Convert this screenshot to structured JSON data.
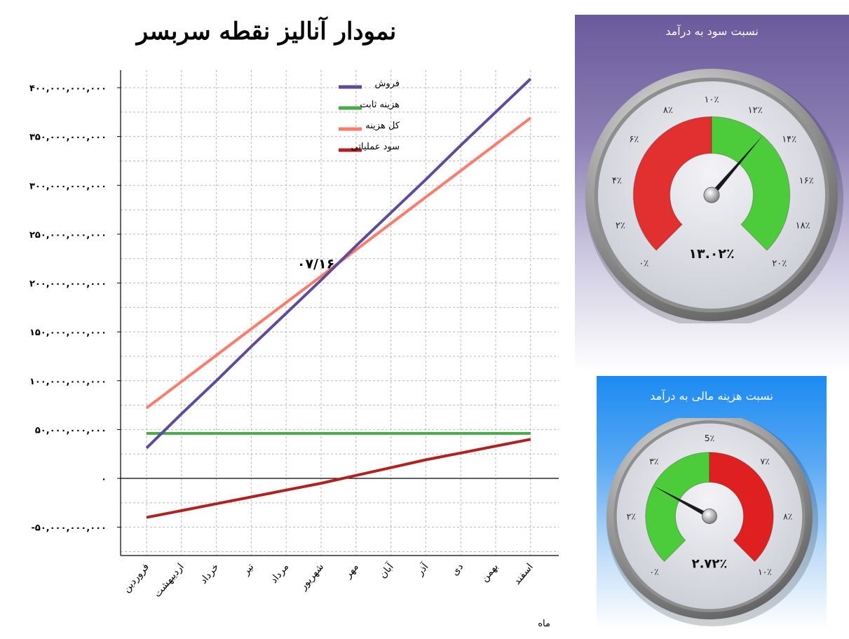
{
  "chart_data": {
    "type": "line",
    "title": "نمودار آنالیز نقطه سربسر",
    "xlabel": "ماه",
    "categories": [
      "فروردین",
      "اردیبهشت",
      "خرداد",
      "تیر",
      "مرداد",
      "شهریور",
      "مهر",
      "آبان",
      "آذر",
      "دی",
      "بهمن",
      "اسفند"
    ],
    "y_ticks": [
      {
        "value": 400000000000,
        "label": "۴۰۰,۰۰۰,۰۰۰,۰۰۰"
      },
      {
        "value": 350000000000,
        "label": "۳۵۰,۰۰۰,۰۰۰,۰۰۰"
      },
      {
        "value": 300000000000,
        "label": "۳۰۰,۰۰۰,۰۰۰,۰۰۰"
      },
      {
        "value": 250000000000,
        "label": "۲۵۰,۰۰۰,۰۰۰,۰۰۰"
      },
      {
        "value": 200000000000,
        "label": "۲۰۰,۰۰۰,۰۰۰,۰۰۰"
      },
      {
        "value": 150000000000,
        "label": "۱۵۰,۰۰۰,۰۰۰,۰۰۰"
      },
      {
        "value": 100000000000,
        "label": "۱۰۰,۰۰۰,۰۰۰,۰۰۰"
      },
      {
        "value": 50000000000,
        "label": "۵۰,۰۰۰,۰۰۰,۰۰۰"
      },
      {
        "value": 0,
        "label": "۰"
      },
      {
        "value": -50000000000,
        "label": "-۵۰,۰۰۰,۰۰۰,۰۰۰"
      }
    ],
    "ylim": [
      -80000000000,
      415000000000
    ],
    "grid": true,
    "legend_position": "top-center",
    "series": [
      {
        "name": "فروش",
        "color": "#5e4b9c",
        "values": [
          31000000000,
          66000000000,
          100000000000,
          135000000000,
          169000000000,
          203000000000,
          238000000000,
          272000000000,
          306000000000,
          341000000000,
          375000000000,
          409000000000
        ]
      },
      {
        "name": "هزینه ثابت",
        "color": "#4aa94a",
        "values": [
          46000000000,
          46000000000,
          46000000000,
          46000000000,
          46000000000,
          46000000000,
          46000000000,
          46000000000,
          46000000000,
          46000000000,
          46000000000,
          46000000000
        ]
      },
      {
        "name": "کل هزینه",
        "color": "#ff7b6b",
        "values": [
          72000000000,
          99000000000,
          126000000000,
          153000000000,
          180000000000,
          207000000000,
          234000000000,
          261000000000,
          288000000000,
          315000000000,
          342000000000,
          369000000000
        ]
      },
      {
        "name": "سود عملیاتی",
        "color": "#b32020",
        "values": [
          -40000000000,
          -33000000000,
          -26000000000,
          -19000000000,
          -12000000000,
          -5000000000,
          3000000000,
          11000000000,
          19000000000,
          26000000000,
          33000000000,
          40000000000
        ]
      }
    ],
    "annotations": [
      {
        "text": "۰۷/۱۶",
        "x_index": 4.85,
        "y": 215000000000
      }
    ]
  },
  "gauges": [
    {
      "title": "نسبت سود به درآمد",
      "value": 13.02,
      "value_text": "۱۳.۰۲٪",
      "min": 0,
      "max": 20,
      "split": 10,
      "low_color": "#e23030",
      "high_color": "#4ccc3a",
      "tick_labels": [
        "۰٪",
        "۲٪",
        "۴٪",
        "۶٪",
        "۸٪",
        "۱۰٪",
        "۱۲٪",
        "۱۴٪",
        "۱۶٪",
        "۱۸٪",
        "۲۰٪"
      ]
    },
    {
      "title": "نسبت هزینه مالی به درآمد",
      "value": 2.72,
      "value_text": "۲.۷۲٪",
      "min": 0,
      "max": 10,
      "split": 5,
      "low_color": "#4ccc3a",
      "high_color": "#e02020",
      "tick_labels": [
        "۰٪",
        "۲٪",
        "۳٪",
        "5٪",
        "۷٪",
        "۸٪",
        "۱۰٪"
      ],
      "tick_values": [
        0,
        1.67,
        3.33,
        5,
        6.67,
        8.33,
        10
      ]
    }
  ]
}
